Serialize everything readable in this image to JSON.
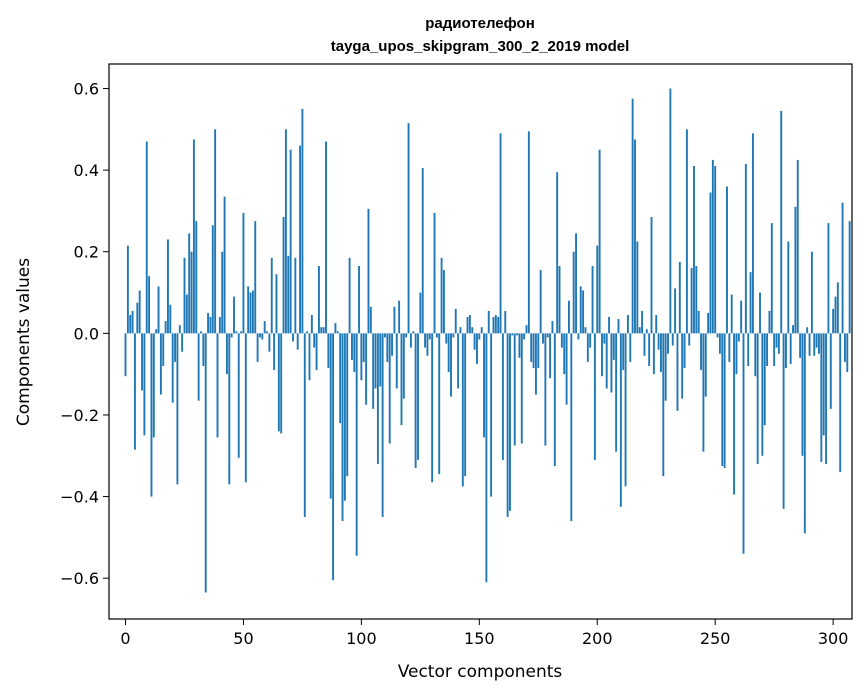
{
  "chart_data": {
    "type": "bar",
    "title_line1": "радиотелефон",
    "title_line2": "tayga_upos_skipgram_300_2_2019 model",
    "xlabel": "Vector components",
    "ylabel": "Components values",
    "xlim": [
      -7,
      308
    ],
    "ylim": [
      -0.7,
      0.66
    ],
    "x_ticks": [
      0,
      50,
      100,
      150,
      200,
      250,
      300
    ],
    "x_tick_labels": [
      "0",
      "50",
      "100",
      "150",
      "200",
      "250",
      "300"
    ],
    "y_ticks": [
      -0.6,
      -0.4,
      -0.2,
      0.0,
      0.2,
      0.4,
      0.6
    ],
    "y_tick_labels": [
      "−0.6",
      "−0.4",
      "−0.2",
      "0.0",
      "0.2",
      "0.4",
      "0.6"
    ],
    "bar_color": "#1f77b4",
    "grid": false,
    "values": [
      -0.105,
      0.215,
      0.045,
      0.055,
      -0.285,
      0.075,
      0.105,
      -0.14,
      -0.25,
      0.47,
      0.14,
      -0.4,
      -0.255,
      0.01,
      0.115,
      -0.15,
      -0.08,
      0.03,
      0.23,
      0.07,
      -0.17,
      -0.07,
      -0.37,
      0.02,
      -0.045,
      0.185,
      0.095,
      0.245,
      0.2,
      0.475,
      0.275,
      -0.165,
      0.005,
      -0.08,
      -0.635,
      0.05,
      0.04,
      0.265,
      0.5,
      -0.255,
      0.04,
      0.2,
      0.335,
      -0.1,
      -0.37,
      -0.01,
      0.09,
      0.005,
      -0.305,
      0.005,
      0.295,
      -0.365,
      0.115,
      0.1,
      0.105,
      0.275,
      -0.07,
      -0.01,
      -0.015,
      0.03,
      0.005,
      -0.045,
      0.185,
      -0.09,
      0.145,
      -0.24,
      -0.245,
      0.285,
      0.5,
      0.19,
      0.45,
      -0.02,
      0.185,
      -0.04,
      0.46,
      0.55,
      -0.45,
      0.005,
      -0.115,
      0.045,
      -0.035,
      -0.09,
      0.165,
      0.015,
      0.015,
      0.47,
      -0.085,
      -0.405,
      -0.605,
      0.025,
      0.005,
      -0.22,
      -0.46,
      -0.41,
      -0.35,
      0.185,
      -0.065,
      -0.095,
      -0.545,
      0.165,
      -0.115,
      -0.07,
      -0.175,
      0.305,
      0.065,
      -0.185,
      -0.135,
      -0.32,
      -0.13,
      -0.45,
      -0.01,
      -0.07,
      -0.27,
      -0.055,
      0.065,
      -0.135,
      0.08,
      -0.225,
      -0.16,
      -0.01,
      0.515,
      -0.035,
      0.005,
      -0.33,
      -0.31,
      0.1,
      0.405,
      -0.035,
      -0.055,
      -0.015,
      -0.365,
      0.295,
      -0.01,
      -0.345,
      0.185,
      0.155,
      -0.025,
      -0.095,
      -0.155,
      -0.01,
      0.06,
      -0.135,
      0.015,
      -0.375,
      -0.35,
      0.04,
      0.045,
      0.015,
      -0.04,
      -0.075,
      -0.015,
      0.015,
      -0.255,
      -0.61,
      0.055,
      -0.4,
      0.04,
      0.045,
      0.04,
      0.49,
      -0.31,
      0.055,
      -0.45,
      -0.435,
      -0.005,
      -0.275,
      -0.005,
      -0.06,
      -0.27,
      -0.015,
      0.02,
      0.495,
      -0.07,
      -0.085,
      -0.15,
      -0.085,
      0.155,
      -0.025,
      -0.275,
      -0.01,
      -0.11,
      0.03,
      -0.325,
      0.395,
      0.165,
      -0.035,
      -0.1,
      -0.175,
      0.08,
      -0.46,
      0.2,
      0.245,
      -0.015,
      0.115,
      0.105,
      0.015,
      -0.07,
      -0.035,
      0.165,
      -0.31,
      0.215,
      0.45,
      -0.105,
      -0.025,
      -0.135,
      0.04,
      -0.145,
      -0.065,
      -0.29,
      0.035,
      -0.425,
      -0.09,
      -0.375,
      0.045,
      -0.07,
      0.575,
      0.475,
      0.225,
      0.015,
      0.055,
      -0.055,
      0.01,
      -0.08,
      0.285,
      -0.1,
      0.045,
      -0.04,
      -0.095,
      -0.35,
      -0.165,
      -0.05,
      0.6,
      -0.03,
      0.11,
      -0.19,
      0.175,
      -0.16,
      -0.085,
      0.5,
      -0.03,
      0.16,
      0.41,
      0.165,
      0.055,
      -0.09,
      -0.29,
      -0.155,
      0.05,
      0.345,
      0.425,
      0.41,
      -0.01,
      -0.05,
      -0.325,
      -0.33,
      0.36,
      -0.07,
      0.095,
      -0.395,
      -0.1,
      -0.02,
      0.08,
      -0.54,
      0.415,
      -0.08,
      0.15,
      0.49,
      -0.105,
      -0.32,
      0.1,
      -0.3,
      -0.225,
      -0.08,
      0.055,
      0.27,
      -0.08,
      -0.035,
      -0.05,
      0.545,
      -0.43,
      -0.085,
      0.225,
      -0.075,
      0.02,
      0.31,
      0.425,
      -0.06,
      -0.3,
      -0.49,
      0.015,
      -0.055,
      0.2,
      -0.055,
      -0.035,
      -0.05,
      -0.315,
      -0.25,
      -0.32,
      0.27,
      -0.185,
      0.06,
      0.09,
      0.125,
      -0.34,
      0.32,
      -0.07,
      -0.095,
      0.275
    ]
  }
}
